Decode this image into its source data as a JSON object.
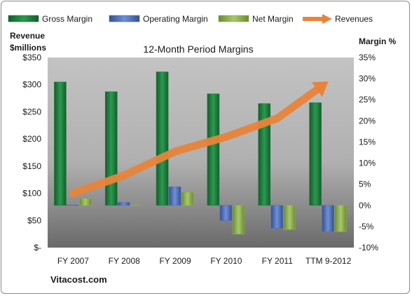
{
  "chart_data": {
    "type": "bar",
    "title": "12-Month Period Margins",
    "categories": [
      "FY 2007",
      "FY 2008",
      "FY 2009",
      "FY 2010",
      "FY 2011",
      "TTM 9-2012"
    ],
    "y_left": {
      "label_lines": [
        "Revenue",
        "$millions"
      ],
      "ylim": [
        0,
        350
      ],
      "ticks": [
        0,
        50,
        100,
        150,
        200,
        250,
        300,
        350
      ],
      "tick_labels": [
        "$-",
        "$50",
        "$100",
        "$150",
        "$200",
        "$250",
        "$300",
        "$350"
      ]
    },
    "y_right": {
      "label": "Margin %",
      "ylim": [
        -10,
        35
      ],
      "ticks": [
        -10,
        -5,
        0,
        5,
        10,
        15,
        20,
        25,
        30,
        35
      ],
      "tick_labels": [
        "-10%",
        "-5%",
        "0%",
        "5%",
        "10%",
        "15%",
        "20%",
        "25%",
        "30%",
        "35%"
      ]
    },
    "series": [
      {
        "name": "Gross Margin",
        "axis": "right",
        "kind": "bar",
        "color": "#1f7f3f",
        "values": [
          29.2,
          26.9,
          31.6,
          26.4,
          24.1,
          24.3
        ]
      },
      {
        "name": "Operating Margin",
        "axis": "right",
        "kind": "bar",
        "color": "#4f6fbf",
        "values": [
          0.1,
          0.7,
          4.4,
          -3.6,
          -5.4,
          -6.2
        ]
      },
      {
        "name": "Net Margin",
        "axis": "right",
        "kind": "bar",
        "color": "#8fb04f",
        "values": [
          1.6,
          0.1,
          3.1,
          -6.8,
          -5.7,
          -6.2
        ]
      },
      {
        "name": "Revenues",
        "axis": "left",
        "kind": "arrow-line",
        "color": "#e8843a",
        "values": [
          100,
          133,
          177,
          204,
          238,
          306
        ]
      }
    ],
    "legend_position": "top",
    "grid": false,
    "background_gradient": [
      "#c3c3c3",
      "#6a6a6a"
    ]
  },
  "footer": {
    "source": "Vitacost.com"
  }
}
